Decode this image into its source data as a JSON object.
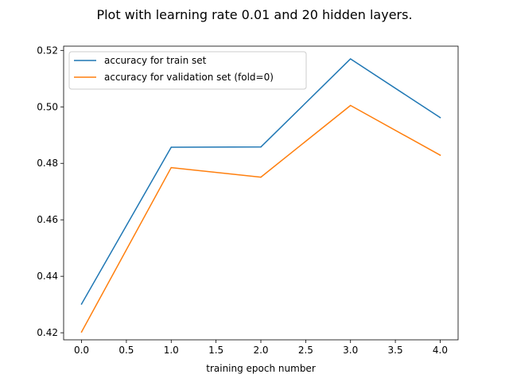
{
  "chart_data": {
    "type": "line",
    "title": "Plot with learning rate 0.01 and 20 hidden layers.",
    "xlabel": "training epoch number",
    "ylabel": "",
    "x": [
      0,
      1,
      2,
      3,
      4
    ],
    "xlim": [
      -0.2,
      4.2
    ],
    "ylim": [
      0.4175,
      0.5215
    ],
    "xticks": [
      0.0,
      0.5,
      1.0,
      1.5,
      2.0,
      2.5,
      3.0,
      3.5,
      4.0
    ],
    "xtick_labels": [
      "0.0",
      "0.5",
      "1.0",
      "1.5",
      "2.0",
      "2.5",
      "3.0",
      "3.5",
      "4.0"
    ],
    "yticks": [
      0.42,
      0.44,
      0.46,
      0.48,
      0.5,
      0.52
    ],
    "ytick_labels": [
      "0.42",
      "0.44",
      "0.46",
      "0.48",
      "0.50",
      "0.52"
    ],
    "grid": false,
    "legend_position": "top-left",
    "series": [
      {
        "name": "accuracy for train set",
        "color": "#1f77b4",
        "values": [
          0.4302,
          0.4857,
          0.4858,
          0.517,
          0.4962
        ]
      },
      {
        "name": "accuracy for validation set (fold=0)",
        "color": "#ff7f0e",
        "values": [
          0.4203,
          0.4785,
          0.4751,
          0.5005,
          0.4829
        ]
      }
    ]
  }
}
